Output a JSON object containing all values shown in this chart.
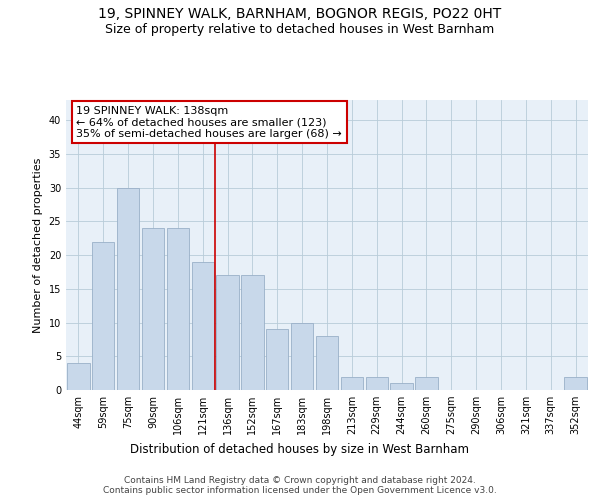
{
  "title1": "19, SPINNEY WALK, BARNHAM, BOGNOR REGIS, PO22 0HT",
  "title2": "Size of property relative to detached houses in West Barnham",
  "xlabel": "Distribution of detached houses by size in West Barnham",
  "ylabel": "Number of detached properties",
  "categories": [
    "44sqm",
    "59sqm",
    "75sqm",
    "90sqm",
    "106sqm",
    "121sqm",
    "136sqm",
    "152sqm",
    "167sqm",
    "183sqm",
    "198sqm",
    "213sqm",
    "229sqm",
    "244sqm",
    "260sqm",
    "275sqm",
    "290sqm",
    "306sqm",
    "321sqm",
    "337sqm",
    "352sqm"
  ],
  "values": [
    4,
    22,
    30,
    24,
    24,
    19,
    17,
    17,
    9,
    10,
    8,
    2,
    2,
    1,
    2,
    0,
    0,
    0,
    0,
    0,
    2
  ],
  "bar_color": "#c8d8ea",
  "bar_edge_color": "#9ab0c8",
  "grid_color": "#b8ccd8",
  "background_color": "#e8f0f8",
  "vline_color": "#cc0000",
  "vline_index": 5.5,
  "annotation_text": "19 SPINNEY WALK: 138sqm\n← 64% of detached houses are smaller (123)\n35% of semi-detached houses are larger (68) →",
  "annotation_box_color": "#ffffff",
  "annotation_border_color": "#cc0000",
  "ylim": [
    0,
    43
  ],
  "yticks": [
    0,
    5,
    10,
    15,
    20,
    25,
    30,
    35,
    40
  ],
  "footer": "Contains HM Land Registry data © Crown copyright and database right 2024.\nContains public sector information licensed under the Open Government Licence v3.0.",
  "title1_fontsize": 10,
  "title2_fontsize": 9,
  "xlabel_fontsize": 8.5,
  "ylabel_fontsize": 8,
  "tick_fontsize": 7,
  "annotation_fontsize": 8,
  "footer_fontsize": 6.5
}
